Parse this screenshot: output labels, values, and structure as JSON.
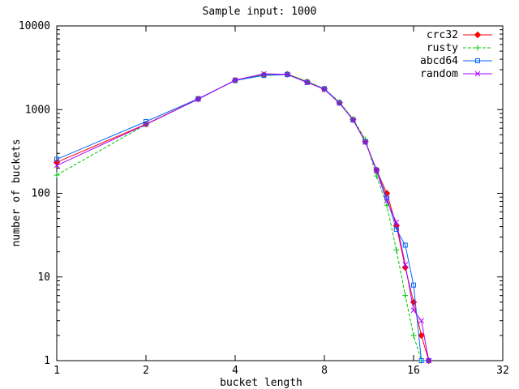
{
  "page": {
    "background": "#ffffff",
    "axis_color": "#000000"
  },
  "chart_data": {
    "type": "line",
    "title": "Sample input: 1000",
    "xlabel": "bucket length",
    "ylabel": "number of buckets",
    "x_scale": "log2",
    "y_scale": "log10",
    "x_range": [
      1,
      32
    ],
    "y_range": [
      1,
      10000
    ],
    "x_ticks": [
      1,
      2,
      4,
      8,
      16,
      32
    ],
    "y_ticks": [
      1,
      10,
      100,
      1000,
      10000
    ],
    "grid": false,
    "legend_position": "top-right-inside",
    "series": [
      {
        "name": "crc32",
        "color": "#ff0000",
        "marker": "diamond",
        "dashed": false,
        "points": [
          [
            1,
            235
          ],
          [
            2,
            670
          ],
          [
            3,
            1340
          ],
          [
            4,
            2240
          ],
          [
            5,
            2600
          ],
          [
            6,
            2650
          ],
          [
            7,
            2150
          ],
          [
            8,
            1760
          ],
          [
            9,
            1210
          ],
          [
            10,
            760
          ],
          [
            11,
            415
          ],
          [
            12,
            190
          ],
          [
            13,
            100
          ],
          [
            14,
            41
          ],
          [
            15,
            13
          ],
          [
            16,
            5
          ],
          [
            17,
            2
          ],
          [
            18,
            1
          ]
        ]
      },
      {
        "name": "rusty",
        "color": "#00c400",
        "marker": "plus",
        "dashed": true,
        "points": [
          [
            1,
            165
          ],
          [
            2,
            665
          ],
          [
            3,
            1335
          ],
          [
            4,
            2240
          ],
          [
            5,
            2620
          ],
          [
            6,
            2660
          ],
          [
            7,
            2180
          ],
          [
            8,
            1770
          ],
          [
            9,
            1230
          ],
          [
            10,
            770
          ],
          [
            11,
            440
          ],
          [
            12,
            161
          ],
          [
            13,
            72
          ],
          [
            14,
            21
          ],
          [
            15,
            6
          ],
          [
            16,
            2
          ],
          [
            17,
            1
          ]
        ]
      },
      {
        "name": "abcd64",
        "color": "#0066ff",
        "marker": "square",
        "dashed": false,
        "points": [
          [
            1,
            255
          ],
          [
            2,
            720
          ],
          [
            3,
            1350
          ],
          [
            4,
            2230
          ],
          [
            5,
            2560
          ],
          [
            6,
            2620
          ],
          [
            7,
            2110
          ],
          [
            8,
            1780
          ],
          [
            9,
            1200
          ],
          [
            10,
            750
          ],
          [
            11,
            410
          ],
          [
            12,
            190
          ],
          [
            13,
            88
          ],
          [
            14,
            37
          ],
          [
            15,
            24
          ],
          [
            16,
            8
          ],
          [
            17,
            1
          ],
          [
            18,
            1
          ]
        ]
      },
      {
        "name": "random",
        "color": "#a800ff",
        "marker": "x",
        "dashed": false,
        "points": [
          [
            1,
            215
          ],
          [
            2,
            665
          ],
          [
            3,
            1330
          ],
          [
            4,
            2250
          ],
          [
            5,
            2680
          ],
          [
            6,
            2640
          ],
          [
            7,
            2120
          ],
          [
            8,
            1745
          ],
          [
            9,
            1190
          ],
          [
            10,
            755
          ],
          [
            11,
            410
          ],
          [
            12,
            185
          ],
          [
            13,
            81
          ],
          [
            14,
            45
          ],
          [
            15,
            14
          ],
          [
            16,
            4
          ],
          [
            17,
            3
          ],
          [
            18,
            1
          ]
        ]
      }
    ]
  }
}
